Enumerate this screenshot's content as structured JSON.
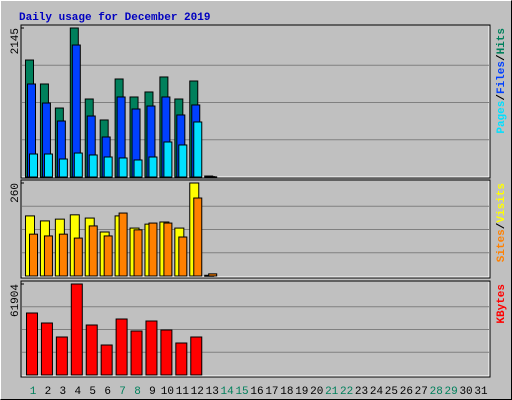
{
  "chart_data": [
    {
      "type": "bar",
      "title": "Daily usage for December 2019",
      "legend_separator": "/",
      "ylim": [
        0,
        2145
      ],
      "yticks": [
        2145
      ],
      "series": [
        {
          "name": "Hits",
          "color": "#00805C",
          "values": [
            1684,
            1339,
            993,
            2145,
            1123,
            821,
            1411,
            1152,
            1224,
            1440,
            1123,
            1382,
            14,
            null,
            null,
            null,
            null,
            null,
            null,
            null,
            null,
            null,
            null,
            null,
            null,
            null,
            null,
            null,
            null,
            null,
            null
          ]
        },
        {
          "name": "Files",
          "color": "#0040FF",
          "values": [
            1339,
            1065,
            806,
            1900,
            878,
            576,
            1152,
            979,
            1022,
            1152,
            893,
            1037,
            5,
            null,
            null,
            null,
            null,
            null,
            null,
            null,
            null,
            null,
            null,
            null,
            null,
            null,
            null,
            null,
            null,
            null,
            null
          ]
        },
        {
          "name": "Pages",
          "color": "#00E0FF",
          "values": [
            331,
            331,
            259,
            345,
            317,
            288,
            274,
            245,
            288,
            504,
            461,
            792,
            2,
            null,
            null,
            null,
            null,
            null,
            null,
            null,
            null,
            null,
            null,
            null,
            null,
            null,
            null,
            null,
            null,
            null,
            null
          ]
        }
      ]
    },
    {
      "type": "bar",
      "legend_separator": "/",
      "ylim": [
        0,
        260
      ],
      "yticks": [
        260
      ],
      "series": [
        {
          "name": "Visits",
          "color": "#FFFF00",
          "values": [
            168,
            154,
            159,
            171,
            162,
            123,
            168,
            134,
            145,
            151,
            134,
            260,
            2,
            null,
            null,
            null,
            null,
            null,
            null,
            null,
            null,
            null,
            null,
            null,
            null,
            null,
            null,
            null,
            null,
            null,
            null
          ]
        },
        {
          "name": "Sites",
          "color": "#FF8000",
          "values": [
            117,
            112,
            117,
            106,
            140,
            112,
            176,
            129,
            148,
            148,
            109,
            218,
            6,
            null,
            null,
            null,
            null,
            null,
            null,
            null,
            null,
            null,
            null,
            null,
            null,
            null,
            null,
            null,
            null,
            null,
            null
          ]
        }
      ]
    },
    {
      "type": "bar",
      "ylim": [
        0,
        61904
      ],
      "yticks": [
        61904
      ],
      "categories": [
        "1",
        "2",
        "3",
        "4",
        "5",
        "6",
        "7",
        "8",
        "9",
        "10",
        "11",
        "12",
        "13",
        "14",
        "15",
        "16",
        "17",
        "18",
        "19",
        "20",
        "21",
        "22",
        "23",
        "24",
        "25",
        "26",
        "27",
        "28",
        "29",
        "30",
        "31"
      ],
      "category_colors": [
        "#00805C",
        "#000000",
        "#000000",
        "#000000",
        "#000000",
        "#000000",
        "#00805C",
        "#00805C",
        "#000000",
        "#000000",
        "#000000",
        "#000000",
        "#000000",
        "#00805C",
        "#00805C",
        "#000000",
        "#000000",
        "#000000",
        "#000000",
        "#000000",
        "#00805C",
        "#00805C",
        "#000000",
        "#000000",
        "#000000",
        "#000000",
        "#000000",
        "#00805C",
        "#00805C",
        "#000000",
        "#000000"
      ],
      "series": [
        {
          "name": "KBytes",
          "color": "#FF0000",
          "values": [
            42176,
            35373,
            25850,
            61904,
            34013,
            20408,
            38094,
            29931,
            36734,
            30612,
            21768,
            25850,
            null,
            null,
            null,
            null,
            null,
            null,
            null,
            null,
            null,
            null,
            null,
            null,
            null,
            null,
            null,
            null,
            null,
            null,
            null
          ]
        }
      ]
    }
  ]
}
